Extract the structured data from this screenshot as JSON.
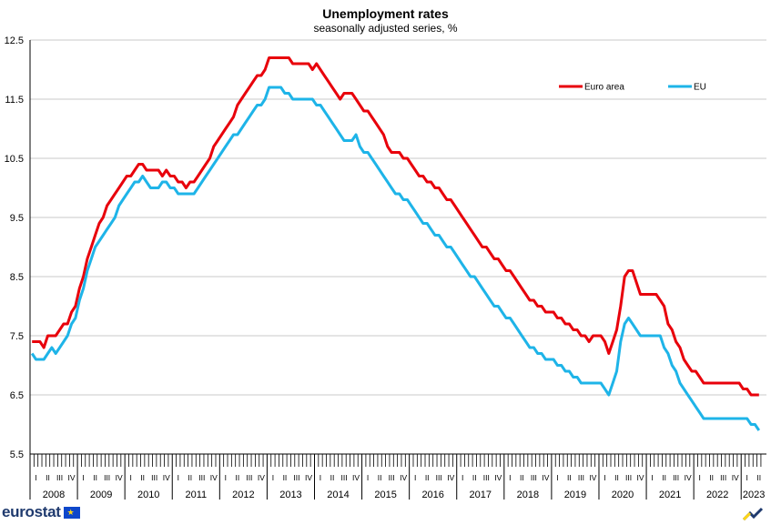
{
  "chart_data": {
    "type": "line",
    "title": "Unemployment rates",
    "subtitle": "seasonally adjusted series, %",
    "ylim": [
      5.5,
      12.5
    ],
    "yticks": [
      "5.5",
      "6.5",
      "7.5",
      "8.5",
      "9.5",
      "10.5",
      "11.5",
      "12.5"
    ],
    "years": [
      "2008",
      "2009",
      "2010",
      "2011",
      "2012",
      "2013",
      "2014",
      "2015",
      "2016",
      "2017",
      "2018",
      "2019",
      "2020",
      "2021",
      "2022",
      "2023"
    ],
    "quarter_labels": [
      "I",
      "II",
      "III",
      "IV"
    ],
    "grid": true,
    "legend_position": "top-right",
    "x_start": "2008-01",
    "series": [
      {
        "name": "Euro area",
        "color": "#e8000b",
        "anchors": [
          [
            "2008-01",
            7.4
          ],
          [
            "2008-03",
            7.4
          ],
          [
            "2008-04",
            7.3
          ],
          [
            "2008-05",
            7.5
          ],
          [
            "2008-07",
            7.5
          ],
          [
            "2008-08",
            7.6
          ],
          [
            "2008-10",
            7.7
          ],
          [
            "2008-12",
            8.0
          ],
          [
            "2009-02",
            8.5
          ],
          [
            "2009-04",
            9.0
          ],
          [
            "2009-06",
            9.4
          ],
          [
            "2009-09",
            9.8
          ],
          [
            "2009-12",
            10.1
          ],
          [
            "2010-03",
            10.3
          ],
          [
            "2010-04",
            10.4
          ],
          [
            "2010-06",
            10.3
          ],
          [
            "2010-08",
            10.3
          ],
          [
            "2010-10",
            10.2
          ],
          [
            "2010-11",
            10.3
          ],
          [
            "2010-12",
            10.2
          ],
          [
            "2011-03",
            10.1
          ],
          [
            "2011-04",
            10.0
          ],
          [
            "2011-06",
            10.1
          ],
          [
            "2011-09",
            10.4
          ],
          [
            "2011-12",
            10.8
          ],
          [
            "2012-03",
            11.1
          ],
          [
            "2012-06",
            11.5
          ],
          [
            "2012-09",
            11.8
          ],
          [
            "2012-12",
            12.0
          ],
          [
            "2013-01",
            12.2
          ],
          [
            "2013-06",
            12.2
          ],
          [
            "2013-07",
            12.1
          ],
          [
            "2013-11",
            12.1
          ],
          [
            "2013-12",
            12.0
          ],
          [
            "2014-01",
            12.1
          ],
          [
            "2014-03",
            11.9
          ],
          [
            "2014-05",
            11.7
          ],
          [
            "2014-06",
            11.6
          ],
          [
            "2014-07",
            11.5
          ],
          [
            "2014-08",
            11.6
          ],
          [
            "2014-10",
            11.6
          ],
          [
            "2014-12",
            11.4
          ],
          [
            "2015-03",
            11.2
          ],
          [
            "2015-05",
            11.0
          ],
          [
            "2015-07",
            10.7
          ],
          [
            "2015-09",
            10.6
          ],
          [
            "2015-12",
            10.5
          ],
          [
            "2016-03",
            10.2
          ],
          [
            "2016-06",
            10.1
          ],
          [
            "2016-09",
            9.9
          ],
          [
            "2016-12",
            9.7
          ],
          [
            "2017-03",
            9.4
          ],
          [
            "2017-06",
            9.1
          ],
          [
            "2017-09",
            8.9
          ],
          [
            "2017-12",
            8.7
          ],
          [
            "2018-03",
            8.5
          ],
          [
            "2018-06",
            8.2
          ],
          [
            "2018-09",
            8.0
          ],
          [
            "2018-12",
            7.9
          ],
          [
            "2019-03",
            7.8
          ],
          [
            "2019-06",
            7.6
          ],
          [
            "2019-09",
            7.5
          ],
          [
            "2019-10",
            7.4
          ],
          [
            "2019-12",
            7.5
          ],
          [
            "2020-02",
            7.4
          ],
          [
            "2020-03",
            7.2
          ],
          [
            "2020-05",
            7.6
          ],
          [
            "2020-06",
            8.0
          ],
          [
            "2020-07",
            8.5
          ],
          [
            "2020-08",
            8.6
          ],
          [
            "2020-09",
            8.6
          ],
          [
            "2020-10",
            8.4
          ],
          [
            "2020-11",
            8.2
          ],
          [
            "2020-12",
            8.2
          ],
          [
            "2021-03",
            8.2
          ],
          [
            "2021-05",
            8.0
          ],
          [
            "2021-06",
            7.7
          ],
          [
            "2021-08",
            7.4
          ],
          [
            "2021-10",
            7.1
          ],
          [
            "2021-12",
            6.9
          ],
          [
            "2022-02",
            6.8
          ],
          [
            "2022-03",
            6.7
          ],
          [
            "2022-12",
            6.7
          ],
          [
            "2023-01",
            6.6
          ],
          [
            "2023-03",
            6.5
          ],
          [
            "2023-05",
            6.5
          ]
        ]
      },
      {
        "name": "EU",
        "color": "#1eb4e8",
        "anchors": [
          [
            "2008-01",
            7.2
          ],
          [
            "2008-02",
            7.1
          ],
          [
            "2008-04",
            7.1
          ],
          [
            "2008-06",
            7.3
          ],
          [
            "2008-07",
            7.2
          ],
          [
            "2008-09",
            7.4
          ],
          [
            "2008-12",
            7.8
          ],
          [
            "2009-02",
            8.3
          ],
          [
            "2009-04",
            8.8
          ],
          [
            "2009-06",
            9.1
          ],
          [
            "2009-09",
            9.4
          ],
          [
            "2009-12",
            9.8
          ],
          [
            "2010-03",
            10.1
          ],
          [
            "2010-05",
            10.2
          ],
          [
            "2010-07",
            10.0
          ],
          [
            "2010-09",
            10.0
          ],
          [
            "2010-10",
            10.1
          ],
          [
            "2010-12",
            10.0
          ],
          [
            "2011-02",
            9.9
          ],
          [
            "2011-06",
            9.9
          ],
          [
            "2011-09",
            10.2
          ],
          [
            "2011-12",
            10.5
          ],
          [
            "2012-03",
            10.8
          ],
          [
            "2012-06",
            11.0
          ],
          [
            "2012-09",
            11.3
          ],
          [
            "2012-12",
            11.5
          ],
          [
            "2013-01",
            11.7
          ],
          [
            "2013-04",
            11.7
          ],
          [
            "2013-05",
            11.6
          ],
          [
            "2013-07",
            11.5
          ],
          [
            "2013-12",
            11.5
          ],
          [
            "2014-01",
            11.4
          ],
          [
            "2014-03",
            11.3
          ],
          [
            "2014-05",
            11.1
          ],
          [
            "2014-07",
            10.9
          ],
          [
            "2014-08",
            10.8
          ],
          [
            "2014-10",
            10.8
          ],
          [
            "2014-11",
            10.9
          ],
          [
            "2014-12",
            10.7
          ],
          [
            "2015-03",
            10.5
          ],
          [
            "2015-06",
            10.2
          ],
          [
            "2015-09",
            9.9
          ],
          [
            "2015-12",
            9.8
          ],
          [
            "2016-03",
            9.5
          ],
          [
            "2016-06",
            9.3
          ],
          [
            "2016-09",
            9.1
          ],
          [
            "2016-12",
            8.9
          ],
          [
            "2017-03",
            8.6
          ],
          [
            "2017-06",
            8.4
          ],
          [
            "2017-09",
            8.1
          ],
          [
            "2017-12",
            7.9
          ],
          [
            "2018-03",
            7.7
          ],
          [
            "2018-06",
            7.4
          ],
          [
            "2018-09",
            7.2
          ],
          [
            "2018-12",
            7.1
          ],
          [
            "2019-03",
            7.0
          ],
          [
            "2019-06",
            6.8
          ],
          [
            "2019-09",
            6.7
          ],
          [
            "2019-12",
            6.7
          ],
          [
            "2020-02",
            6.6
          ],
          [
            "2020-03",
            6.5
          ],
          [
            "2020-05",
            6.9
          ],
          [
            "2020-06",
            7.4
          ],
          [
            "2020-07",
            7.7
          ],
          [
            "2020-08",
            7.8
          ],
          [
            "2020-09",
            7.7
          ],
          [
            "2020-11",
            7.5
          ],
          [
            "2020-12",
            7.5
          ],
          [
            "2021-04",
            7.5
          ],
          [
            "2021-05",
            7.3
          ],
          [
            "2021-07",
            7.0
          ],
          [
            "2021-09",
            6.7
          ],
          [
            "2021-12",
            6.4
          ],
          [
            "2022-02",
            6.2
          ],
          [
            "2022-03",
            6.1
          ],
          [
            "2022-12",
            6.1
          ],
          [
            "2023-01",
            6.1
          ],
          [
            "2023-03",
            6.0
          ],
          [
            "2023-05",
            5.9
          ]
        ]
      }
    ]
  },
  "branding": {
    "logo_text": "eurostat",
    "flag_color": "#0e47cb",
    "star_color": "#ffd617"
  }
}
